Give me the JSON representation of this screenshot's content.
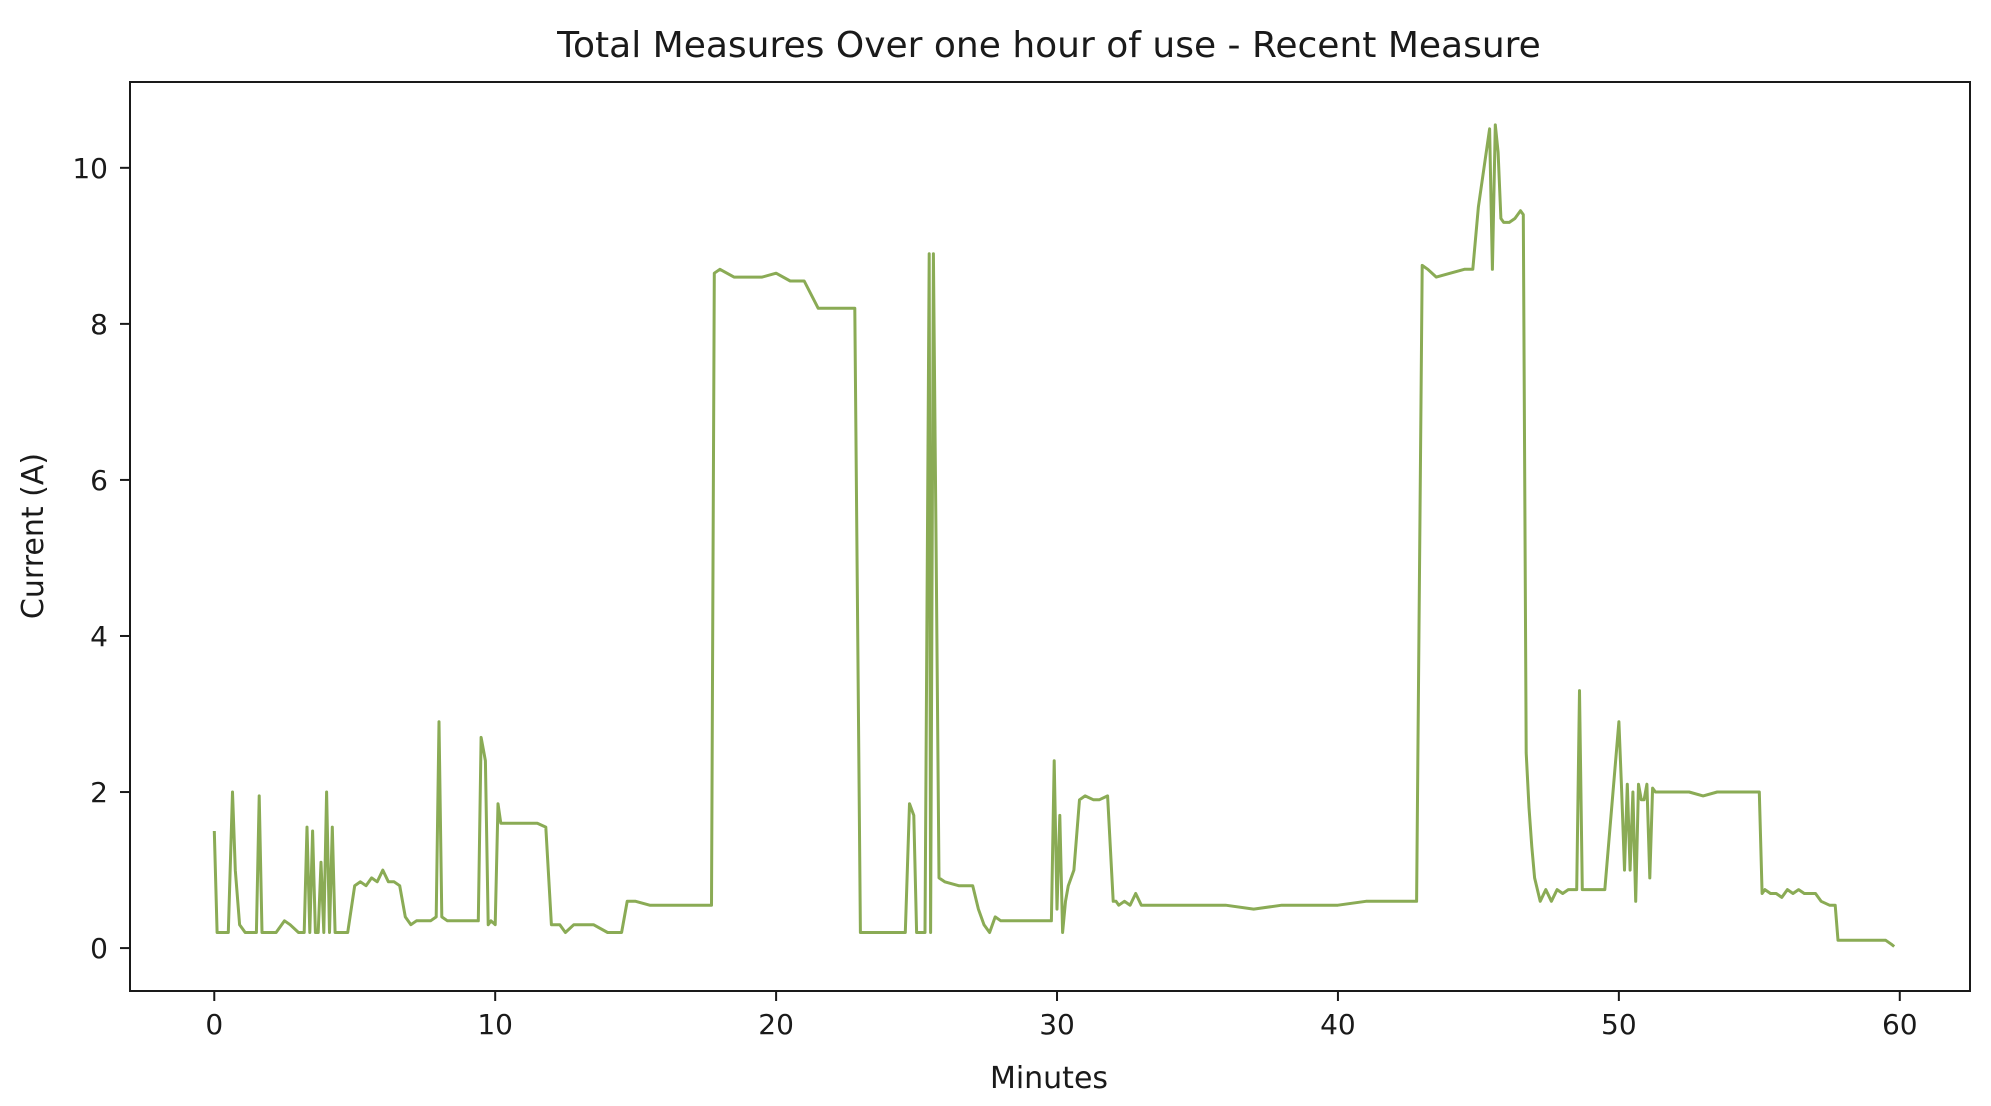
{
  "chart_data": {
    "type": "line",
    "title": "Total Measures Over one hour of use - Recent Measure",
    "xlabel": "Minutes",
    "ylabel": "Current (A)",
    "xlim": [
      -3,
      62.5
    ],
    "ylim": [
      -0.55,
      11.1
    ],
    "xticks": [
      0,
      10,
      20,
      30,
      40,
      50,
      60
    ],
    "yticks": [
      0,
      2,
      4,
      6,
      8,
      10
    ],
    "grid": false,
    "legend": "none",
    "series": [
      {
        "color": "#8aab55",
        "x": [
          0,
          0.1,
          0.25,
          0.5,
          0.65,
          0.75,
          0.9,
          1.1,
          1.3,
          1.5,
          1.6,
          1.7,
          1.8,
          2.0,
          2.2,
          2.5,
          2.7,
          3.0,
          3.2,
          3.3,
          3.4,
          3.5,
          3.6,
          3.7,
          3.8,
          3.9,
          4.0,
          4.1,
          4.2,
          4.3,
          4.45,
          4.55,
          4.65,
          4.75,
          5.0,
          5.2,
          5.4,
          5.6,
          5.8,
          6.0,
          6.2,
          6.4,
          6.6,
          6.8,
          7.0,
          7.2,
          7.5,
          7.7,
          7.9,
          8.0,
          8.1,
          8.3,
          8.6,
          9.0,
          9.4,
          9.5,
          9.6,
          9.65,
          9.75,
          9.85,
          10.0,
          10.1,
          10.2,
          10.5,
          11.0,
          11.5,
          11.8,
          12.0,
          12.3,
          12.5,
          12.8,
          13.0,
          13.5,
          14.0,
          14.3,
          14.5,
          14.7,
          15.0,
          15.5,
          16.0,
          16.5,
          17.0,
          17.5,
          17.7,
          17.8,
          18.0,
          18.5,
          19.0,
          19.5,
          20.0,
          20.5,
          20.8,
          21.0,
          21.5,
          22.0,
          22.5,
          22.7,
          22.8,
          23.0,
          23.5,
          24.0,
          24.2,
          24.4,
          24.6,
          24.75,
          24.9,
          25.0,
          25.1,
          25.3,
          25.45,
          25.5,
          25.6,
          25.7,
          25.8,
          26.0,
          26.5,
          26.8,
          27.0,
          27.2,
          27.4,
          27.6,
          27.8,
          28.0,
          28.5,
          29.0,
          29.5,
          29.7,
          29.8,
          29.9,
          30.0,
          30.1,
          30.2,
          30.3,
          30.4,
          30.6,
          30.8,
          31.0,
          31.3,
          31.5,
          31.8,
          32.0,
          32.1,
          32.2,
          32.4,
          32.6,
          32.8,
          33.0,
          33.2,
          33.5,
          34.0,
          35.0,
          36.0,
          37.0,
          38.0,
          39.0,
          40.0,
          41.0,
          42.0,
          42.8,
          43.0,
          43.2,
          43.5,
          44.0,
          44.5,
          44.7,
          44.8,
          45.0,
          45.2,
          45.4,
          45.5,
          45.6,
          45.7,
          45.8,
          45.9,
          46.1,
          46.3,
          46.5,
          46.6,
          46.7,
          46.8,
          46.9,
          47.0,
          47.2,
          47.4,
          47.6,
          47.8,
          48.0,
          48.2,
          48.5,
          48.6,
          48.7,
          48.8,
          49.0,
          49.5,
          50.0,
          50.1,
          50.2,
          50.3,
          50.4,
          50.5,
          50.6,
          50.7,
          50.8,
          50.9,
          51.0,
          51.1,
          51.2,
          51.3,
          51.5,
          52.0,
          52.5,
          53.0,
          53.5,
          54.0,
          54.5,
          55.0,
          55.1,
          55.2,
          55.4,
          55.6,
          55.8,
          56.0,
          56.2,
          56.4,
          56.6,
          56.8,
          57.0,
          57.2,
          57.5,
          57.7,
          57.8,
          58.0,
          58.5,
          59.0,
          59.5,
          59.7,
          59.8
        ],
        "y": [
          1.5,
          0.2,
          0.2,
          0.2,
          2.0,
          1.0,
          0.3,
          0.2,
          0.2,
          0.2,
          1.95,
          0.2,
          0.2,
          0.2,
          0.2,
          0.35,
          0.3,
          0.2,
          0.2,
          1.55,
          0.2,
          1.5,
          0.2,
          0.2,
          1.1,
          0.2,
          2.0,
          0.2,
          1.55,
          0.2,
          0.2,
          0.2,
          0.2,
          0.2,
          0.8,
          0.85,
          0.8,
          0.9,
          0.85,
          1.0,
          0.85,
          0.85,
          0.8,
          0.4,
          0.3,
          0.35,
          0.35,
          0.35,
          0.4,
          2.9,
          0.4,
          0.35,
          0.35,
          0.35,
          0.35,
          2.7,
          2.5,
          2.4,
          0.3,
          0.35,
          0.3,
          1.85,
          1.6,
          1.6,
          1.6,
          1.6,
          1.55,
          0.3,
          0.3,
          0.2,
          0.3,
          0.3,
          0.3,
          0.2,
          0.2,
          0.2,
          0.6,
          0.6,
          0.55,
          0.55,
          0.55,
          0.55,
          0.55,
          0.55,
          8.65,
          8.7,
          8.6,
          8.6,
          8.6,
          8.65,
          8.55,
          8.55,
          8.55,
          8.2,
          8.2,
          8.2,
          8.2,
          8.2,
          0.2,
          0.2,
          0.2,
          0.2,
          0.2,
          0.2,
          1.85,
          1.7,
          0.2,
          0.2,
          0.2,
          8.9,
          0.2,
          8.9,
          5.0,
          0.9,
          0.85,
          0.8,
          0.8,
          0.8,
          0.5,
          0.3,
          0.2,
          0.4,
          0.35,
          0.35,
          0.35,
          0.35,
          0.35,
          0.35,
          2.4,
          0.5,
          1.7,
          0.2,
          0.6,
          0.8,
          1.0,
          1.9,
          1.95,
          1.9,
          1.9,
          1.95,
          0.6,
          0.6,
          0.55,
          0.6,
          0.55,
          0.7,
          0.55,
          0.55,
          0.55,
          0.55,
          0.55,
          0.55,
          0.5,
          0.55,
          0.55,
          0.55,
          0.6,
          0.6,
          0.6,
          8.75,
          8.7,
          8.6,
          8.65,
          8.7,
          8.7,
          8.7,
          9.5,
          10.0,
          10.5,
          8.7,
          10.55,
          10.2,
          9.35,
          9.3,
          9.3,
          9.35,
          9.45,
          9.4,
          2.5,
          1.8,
          1.3,
          0.9,
          0.6,
          0.75,
          0.6,
          0.75,
          0.7,
          0.75,
          0.75,
          3.3,
          0.75,
          0.75,
          0.75,
          0.75,
          2.9,
          2.0,
          1.0,
          2.1,
          1.0,
          2.0,
          0.6,
          2.1,
          1.9,
          1.9,
          2.1,
          0.9,
          2.05,
          2.0,
          2.0,
          2.0,
          2.0,
          1.95,
          2.0,
          2.0,
          2.0,
          2.0,
          0.7,
          0.75,
          0.7,
          0.7,
          0.65,
          0.75,
          0.7,
          0.75,
          0.7,
          0.7,
          0.7,
          0.6,
          0.55,
          0.55,
          0.1,
          0.1,
          0.1,
          0.1,
          0.1,
          0.05,
          0.02
        ]
      }
    ]
  }
}
